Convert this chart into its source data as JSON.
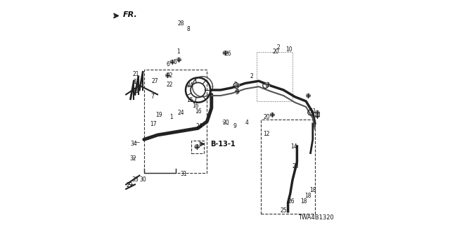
{
  "title": "",
  "background_color": "#ffffff",
  "diagram_id": "TWA4B1320",
  "fr_label": "FR.",
  "b_label": "B-13-1",
  "line_color": "#222222",
  "text_color": "#111111"
}
